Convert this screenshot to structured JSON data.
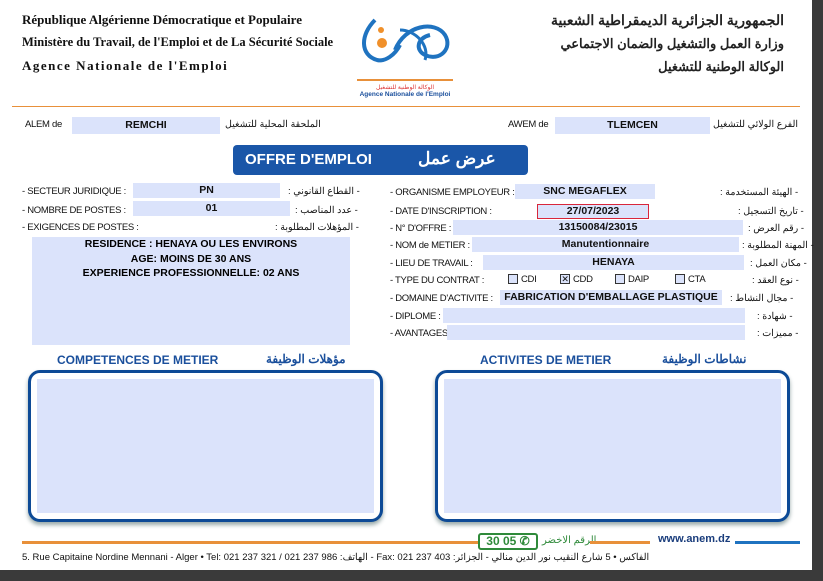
{
  "header": {
    "fr_line1": "République Algérienne Démocratique et Populaire",
    "fr_line2": "Ministère du Travail, de l'Emploi et de La Sécurité Sociale",
    "fr_line3": "Agence Nationale de l'Emploi",
    "ar_line1": "الجمهورية الجزائرية الديمقراطية الشعبية",
    "ar_line2": "وزارة العمل والتشغيل والضمان الاجتماعي",
    "ar_line3": "الوكالة الوطنية للتشغيل",
    "logo_ar": "الوكالة الوطنية للتشغيل",
    "logo_fr": "Agence Nationale de l'Emploi"
  },
  "agency": {
    "alem_label": "ALEM de",
    "alem_value": "REMCHI",
    "alem_ar": "الملحقة المحلية للتشغيل",
    "awem_label": "AWEM de",
    "awem_value": "TLEMCEN",
    "awem_ar": "الفرع الولائي للتشغيل"
  },
  "title": {
    "fr": "OFFRE D'EMPLOI",
    "ar": "عرض عمل"
  },
  "left": {
    "secteur_label": "- SECTEUR JURIDIQUE :",
    "secteur_value": "PN",
    "secteur_ar": "- القطاع القانوني :",
    "postes_label": "- NOMBRE DE POSTES :",
    "postes_value": "01",
    "postes_ar": "- عدد المناصب :",
    "exig_label": "- EXIGENCES DE POSTES :",
    "exig_ar": "- المؤهلات المطلوبة :",
    "exig_lines": [
      "RESIDENCE : HENAYA OU LES ENVIRONS",
      "AGE: MOINS DE 30 ANS",
      "EXPERIENCE PROFESSIONNELLE: 02 ANS"
    ]
  },
  "right": {
    "org_label": "- ORGANISME EMPLOYEUR :",
    "org_value": "SNC MEGAFLEX",
    "org_ar": "- الهيئة المستخدمة :",
    "date_label": "- DATE D'INSCRIPTION :",
    "date_value": "27/07/2023",
    "date_ar": "- تاريخ التسجيل :",
    "offre_label": "- N° D'OFFRE :",
    "offre_value": "13150084/23015",
    "offre_ar": "- رقم العرض :",
    "metier_label": "- NOM de METIER :",
    "metier_value": "Manutentionnaire",
    "metier_ar": "- المهنة المطلوبة :",
    "lieu_label": "- LIEU DE TRAVAIL :",
    "lieu_value": "HENAYA",
    "lieu_ar": "- مكان العمل :",
    "contrat_label": "- TYPE DU CONTRAT :",
    "contrat_ar": "- نوع العقد :",
    "contrats": [
      {
        "label": "CDI",
        "checked": false
      },
      {
        "label": "CDD",
        "checked": true
      },
      {
        "label": "DAIP",
        "checked": false
      },
      {
        "label": "CTA",
        "checked": false
      }
    ],
    "domaine_label": "- DOMAINE D'ACTIVITE :",
    "domaine_value": "FABRICATION D'EMBALLAGE PLASTIQUE",
    "domaine_ar": "- مجال النشاط :",
    "diplome_label": "- DIPLOME :",
    "diplome_value": "",
    "diplome_ar": "- شهادة :",
    "avantages_label": "- AVANTAGES :",
    "avantages_value": "",
    "avantages_ar": "- مميزات :"
  },
  "sections": {
    "competences_fr": "COMPETENCES DE METIER",
    "competences_ar": "مؤهلات الوظيفة",
    "activites_fr": "ACTIVITES DE METIER",
    "activites_ar": "نشاطات الوظيفة"
  },
  "footer": {
    "green_number": "30 05",
    "green_label": "الرقم الاخضر",
    "website": "www.anem.dz",
    "address": "5. Rue Capitaine Nordine Mennani - Alger • Tel: 021 237 321 / 021 237 986 :الهاتف - Fax: 021 237 403 :الفاكس • 5 شارع النقيب نور الدين منالي - الجزائر"
  },
  "colors": {
    "brand_blue": "#1a56a8",
    "orange": "#e8903a",
    "field_bg": "#dbe3fb",
    "green": "#2f8a3a",
    "date_border": "#d9263a"
  }
}
